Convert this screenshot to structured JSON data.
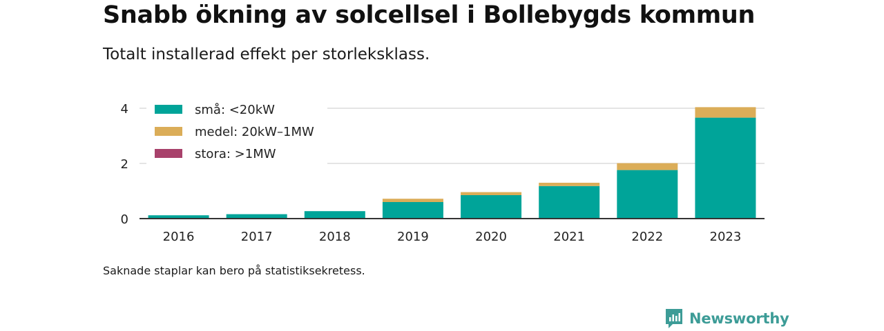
{
  "title": "Snabb ökning av solcellsel i Bollebygds kommun",
  "subtitle": "Totalt installerad effekt per storleksklass.",
  "footnote": "Saknade staplar kan bero på statistiksekretess.",
  "brand": {
    "name": "Newsworthy",
    "color": "#3d9c97",
    "icon": "bar-chart-logo-icon"
  },
  "chart_data": {
    "type": "bar",
    "stacked": true,
    "categories": [
      "2016",
      "2017",
      "2018",
      "2019",
      "2020",
      "2021",
      "2022",
      "2023"
    ],
    "series": [
      {
        "name": "små: <20kW",
        "color": "#00a499",
        "values": [
          0.12,
          0.16,
          0.27,
          0.6,
          0.85,
          1.18,
          1.76,
          3.66
        ]
      },
      {
        "name": "medel: 20kW–1MW",
        "color": "#dbad58",
        "values": [
          0,
          0,
          0.05,
          0.17,
          0.16,
          0.17,
          0.3,
          0.43
        ]
      },
      {
        "name": "stora: >1MW",
        "color": "#a8416b",
        "values": [
          0,
          0,
          0,
          0,
          0,
          0,
          0,
          0
        ]
      }
    ],
    "yticks": [
      0,
      2,
      4
    ],
    "ylim": [
      0,
      4.2
    ],
    "grid": true,
    "legend": "top-left"
  }
}
